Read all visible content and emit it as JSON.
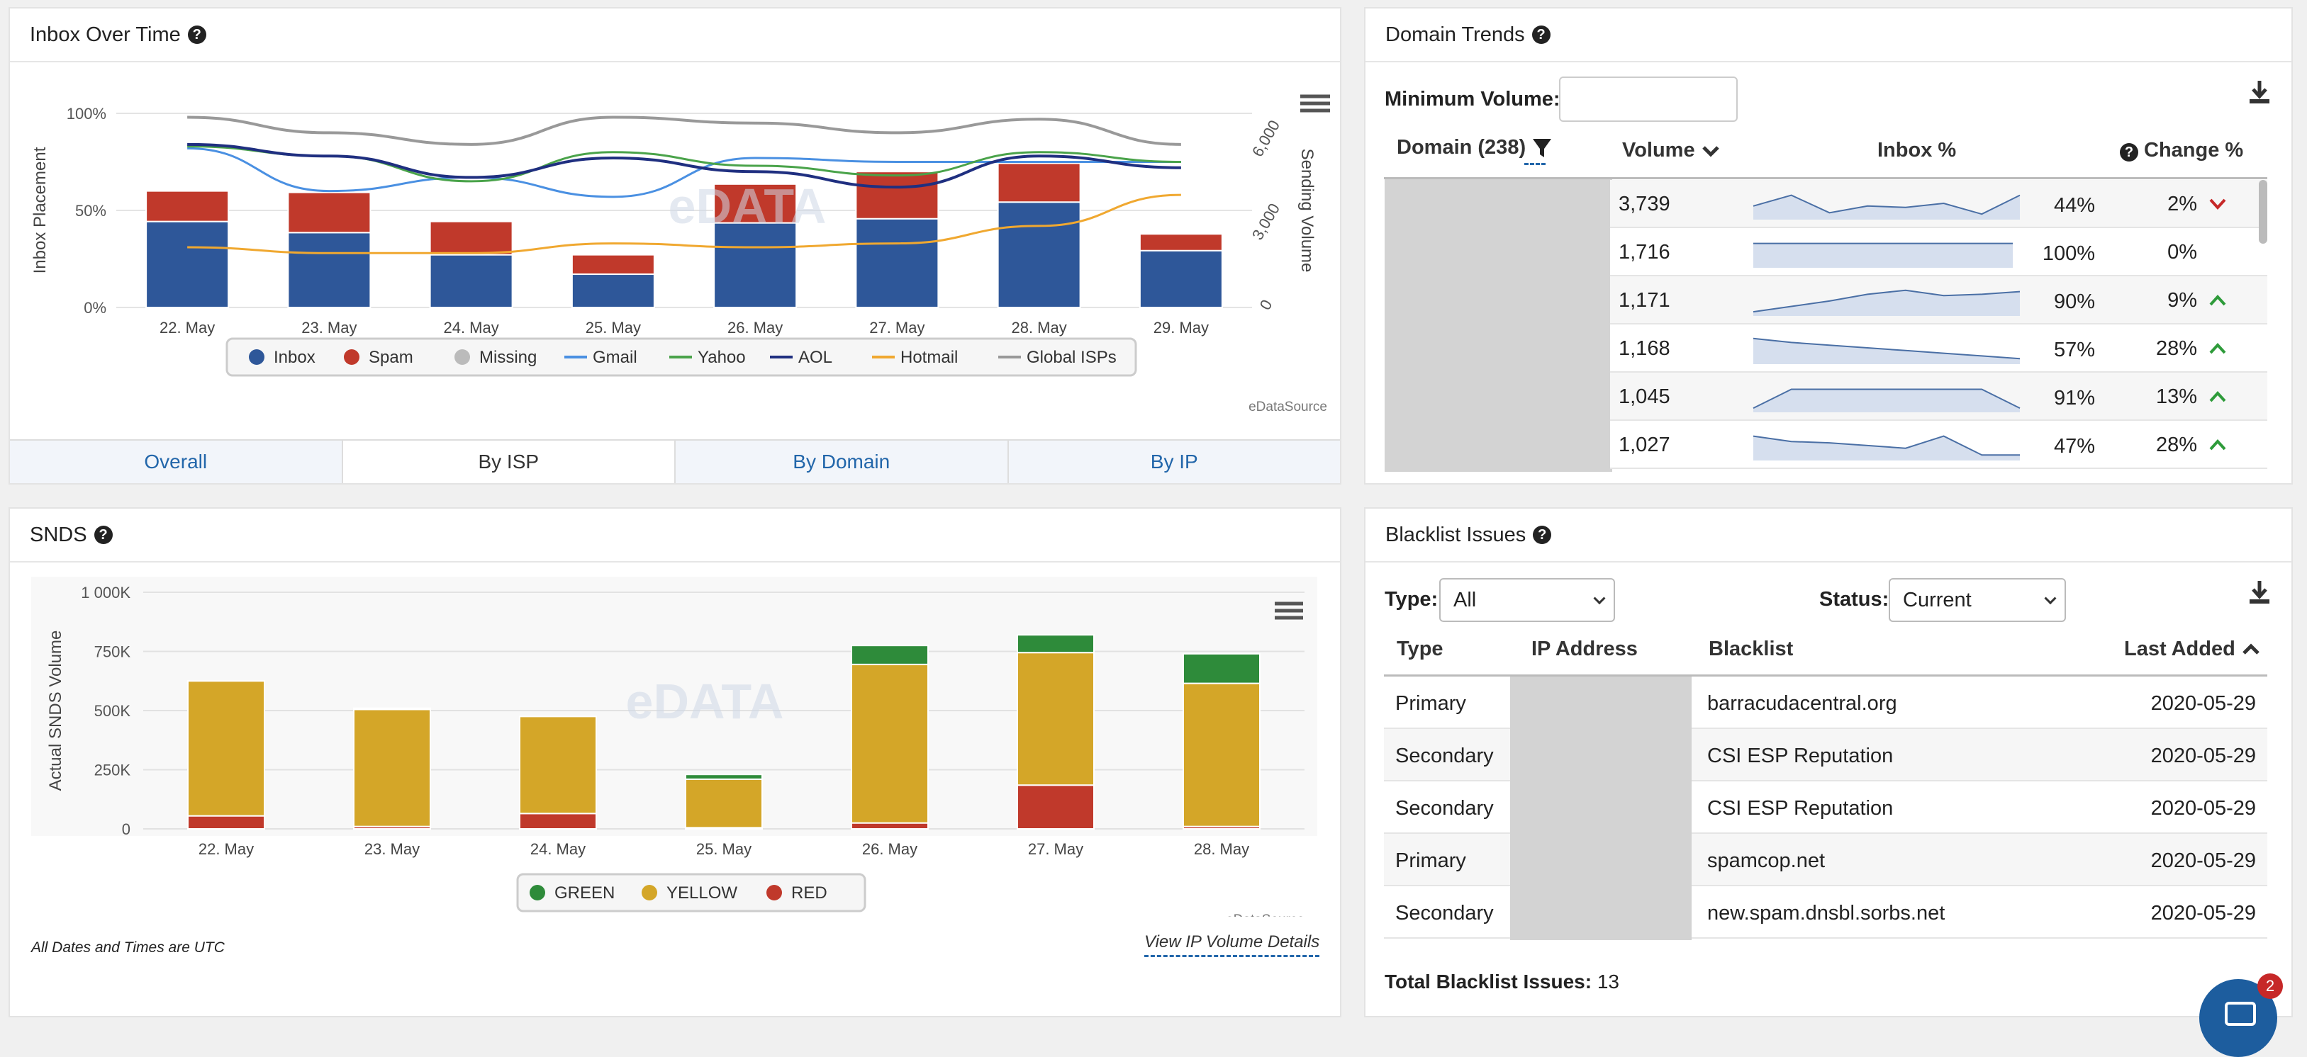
{
  "inbox_panel": {
    "title": "Inbox Over Time",
    "tabs": [
      "Overall",
      "By ISP",
      "By Domain",
      "By IP"
    ],
    "active_tab": "By ISP",
    "credit": "eDataSource",
    "y_left_label": "Inbox Placement",
    "y_right_label": "Sending Volume",
    "legend": [
      "Inbox",
      "Spam",
      "Missing",
      "Gmail",
      "Yahoo",
      "AOL",
      "Hotmail",
      "Global ISPs"
    ],
    "colors": {
      "inbox": "#2e5799",
      "spam": "#c0392b",
      "missing": "#bbbbbb",
      "gmail": "#4a90e2",
      "yahoo": "#4aa34a",
      "aol": "#1f2f80",
      "hotmail": "#f0a830",
      "global": "#999999"
    }
  },
  "domain_panel": {
    "title": "Domain Trends",
    "min_volume_label": "Minimum Volume:",
    "min_volume_value": "",
    "col_domain": "Domain (238)",
    "col_volume": "Volume",
    "col_inbox": "Inbox %",
    "col_change": "Change %",
    "rows": [
      {
        "volume": "3,739",
        "inbox": "44%",
        "change": "2%",
        "dir": "down",
        "spark": [
          0.6,
          0.2,
          0.85,
          0.6,
          0.65,
          0.5,
          0.9,
          0.2
        ]
      },
      {
        "volume": "1,716",
        "inbox": "100%",
        "change": "0%",
        "dir": "none",
        "spark": [
          0.2,
          0.2,
          0.2,
          0.2,
          0.2,
          0.2,
          0.2,
          0.2
        ]
      },
      {
        "volume": "1,171",
        "inbox": "90%",
        "change": "9%",
        "dir": "up",
        "spark": [
          0.95,
          0.75,
          0.55,
          0.3,
          0.15,
          0.35,
          0.3,
          0.2
        ]
      },
      {
        "volume": "1,168",
        "inbox": "57%",
        "change": "28%",
        "dir": "up",
        "spark": [
          0.15,
          0.3,
          0.4,
          0.5,
          0.6,
          0.7,
          0.8,
          0.9
        ]
      },
      {
        "volume": "1,045",
        "inbox": "91%",
        "change": "13%",
        "dir": "up",
        "spark": [
          0.95,
          0.25,
          0.25,
          0.25,
          0.25,
          0.25,
          0.25,
          0.95
        ]
      },
      {
        "volume": "1,027",
        "inbox": "47%",
        "change": "28%",
        "dir": "up",
        "spark": [
          0.2,
          0.4,
          0.45,
          0.55,
          0.65,
          0.2,
          0.9,
          0.9
        ]
      }
    ]
  },
  "snds_panel": {
    "title": "SNDS",
    "y_label": "Actual SNDS Volume",
    "legend": [
      "GREEN",
      "YELLOW",
      "RED"
    ],
    "credit": "eDataSource",
    "link": "View IP Volume Details",
    "note": "All Dates and Times are UTC",
    "colors": {
      "green": "#2e8b3a",
      "yellow": "#d4a628",
      "red": "#c0392b"
    }
  },
  "blacklist_panel": {
    "title": "Blacklist Issues",
    "type_label": "Type:",
    "type_value": "All",
    "status_label": "Status:",
    "status_value": "Current",
    "cols": [
      "Type",
      "IP Address",
      "Blacklist",
      "Last Added"
    ],
    "rows": [
      {
        "type": "Primary",
        "blacklist": "barracudacentral.org",
        "date": "2020-05-29"
      },
      {
        "type": "Secondary",
        "blacklist": "CSI ESP Reputation",
        "date": "2020-05-29"
      },
      {
        "type": "Secondary",
        "blacklist": "CSI ESP Reputation",
        "date": "2020-05-29"
      },
      {
        "type": "Primary",
        "blacklist": "spamcop.net",
        "date": "2020-05-29"
      },
      {
        "type": "Secondary",
        "blacklist": "new.spam.dnsbl.sorbs.net",
        "date": "2020-05-29"
      }
    ],
    "total_label": "Total Blacklist Issues:",
    "total_value": "13",
    "chat_badge": "2"
  },
  "chart_data": [
    {
      "type": "bar",
      "title": "Inbox Over Time",
      "categories": [
        "22. May",
        "23. May",
        "24. May",
        "25. May",
        "26. May",
        "27. May",
        "28. May",
        "29. May"
      ],
      "ylabel": "Inbox Placement",
      "y2label": "Sending Volume",
      "yticks": [
        "0%",
        "50%",
        "100%"
      ],
      "y2ticks": [
        "0",
        "3,000",
        "6,000"
      ],
      "ylim": [
        0,
        7000
      ],
      "series": [
        {
          "name": "Inbox",
          "values": [
            3100,
            2700,
            1900,
            1200,
            3050,
            3200,
            3800,
            2050
          ]
        },
        {
          "name": "Spam",
          "values": [
            1100,
            1450,
            1200,
            700,
            1400,
            1700,
            1400,
            600
          ]
        },
        {
          "name": "Missing",
          "values": [
            0,
            0,
            0,
            0,
            0,
            0,
            0,
            0
          ]
        }
      ],
      "line_series": [
        {
          "name": "Gmail",
          "values": [
            0.82,
            0.6,
            0.67,
            0.57,
            0.77,
            0.75,
            0.75,
            0.75
          ]
        },
        {
          "name": "Yahoo",
          "values": [
            0.83,
            0.78,
            0.65,
            0.8,
            0.73,
            0.68,
            0.8,
            0.75
          ]
        },
        {
          "name": "AOL",
          "values": [
            0.84,
            0.78,
            0.67,
            0.77,
            0.7,
            0.62,
            0.78,
            0.72
          ]
        },
        {
          "name": "Hotmail",
          "values": [
            0.31,
            0.28,
            0.28,
            0.33,
            0.31,
            0.33,
            0.42,
            0.58
          ]
        },
        {
          "name": "Global ISPs",
          "values": [
            0.98,
            0.9,
            0.84,
            0.98,
            0.95,
            0.9,
            0.97,
            0.84
          ]
        }
      ],
      "legend_position": "bottom"
    },
    {
      "type": "bar",
      "title": "SNDS",
      "categories": [
        "22. May",
        "23. May",
        "24. May",
        "25. May",
        "26. May",
        "27. May",
        "28. May"
      ],
      "ylabel": "Actual SNDS Volume",
      "yticks": [
        "0",
        "250K",
        "500K",
        "750K",
        "1 000K"
      ],
      "ylim": [
        0,
        1000000
      ],
      "series": [
        {
          "name": "RED",
          "values": [
            55000,
            10000,
            65000,
            5000,
            25000,
            185000,
            10000
          ]
        },
        {
          "name": "YELLOW",
          "values": [
            570000,
            495000,
            410000,
            205000,
            670000,
            560000,
            605000
          ]
        },
        {
          "name": "GREEN",
          "values": [
            0,
            5000,
            0,
            20000,
            80000,
            75000,
            125000
          ]
        }
      ],
      "legend_position": "bottom"
    }
  ]
}
